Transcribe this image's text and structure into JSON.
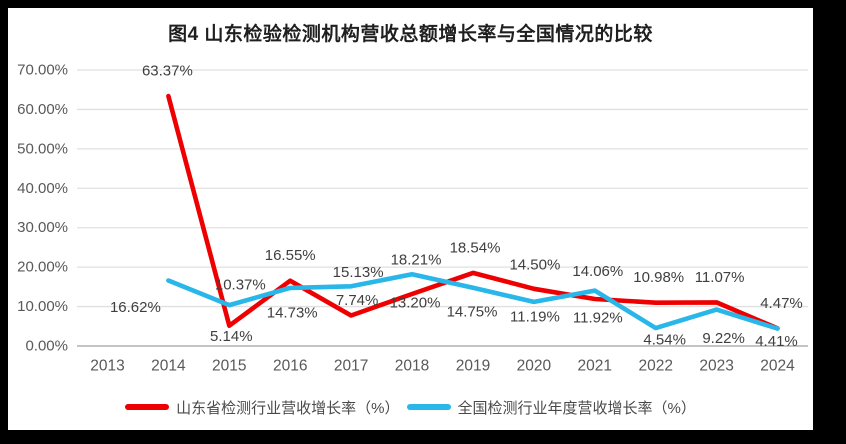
{
  "panel": {
    "frame_background": "#000000",
    "background": "#ffffff"
  },
  "chart_data": {
    "type": "line",
    "title": "图4  山东检验检测机构营收总额增长率与全国情况的比较",
    "categories": [
      "2013",
      "2014",
      "2015",
      "2016",
      "2017",
      "2018",
      "2019",
      "2020",
      "2021",
      "2022",
      "2023",
      "2024"
    ],
    "ylim": [
      0,
      70
    ],
    "y_ticks": [
      "0.00%",
      "10.00%",
      "20.00%",
      "30.00%",
      "40.00%",
      "50.00%",
      "60.00%",
      "70.00%"
    ],
    "grid": true,
    "legend_position": "bottom",
    "series": [
      {
        "id": "shandong",
        "name": "山东省检测行业营收增长率（%）",
        "color": "#ee0000",
        "values": [
          null,
          63.37,
          5.14,
          16.55,
          7.74,
          13.2,
          18.54,
          14.5,
          11.92,
          10.98,
          11.07,
          4.47
        ],
        "labels": [
          null,
          "63.37%",
          "5.14%",
          "16.55%",
          "7.74%",
          "13.20%",
          "18.54%",
          "14.50%",
          "11.92%",
          "10.98%",
          "11.07%",
          "4.47%"
        ]
      },
      {
        "id": "national",
        "name": "全国检测行业年度营收增长率（%）",
        "color": "#29b6e8",
        "values": [
          null,
          16.62,
          10.37,
          14.73,
          15.13,
          18.21,
          14.75,
          11.19,
          14.06,
          4.54,
          9.22,
          4.41
        ],
        "labels": [
          null,
          "16.62%",
          "10.37%",
          "14.73%",
          "15.13%",
          "18.21%",
          "14.75%",
          "11.19%",
          "14.06%",
          "4.54%",
          "9.22%",
          "4.41%"
        ]
      }
    ],
    "label_offsets": {
      "shandong": [
        null,
        [
          -1,
          -25
        ],
        [
          2,
          11
        ],
        [
          0,
          -25
        ],
        [
          6,
          -15
        ],
        [
          3,
          9
        ],
        [
          2,
          -25
        ],
        [
          1,
          -24
        ],
        [
          3,
          19
        ],
        [
          3,
          -25
        ],
        [
          3,
          -25
        ],
        [
          4,
          -25
        ]
      ],
      "national": [
        null,
        [
          -33,
          27
        ],
        [
          11,
          -20
        ],
        [
          2,
          25
        ],
        [
          7,
          -14
        ],
        [
          4,
          -14
        ],
        [
          -1,
          24
        ],
        [
          1,
          15
        ],
        [
          3,
          -19
        ],
        [
          9,
          12
        ],
        [
          7,
          29
        ],
        [
          -1,
          13
        ]
      ]
    },
    "colors": {
      "grid": "#e0e0e0",
      "axis": "#c4c4c4",
      "tick_text": "#595959",
      "data_label_text": "#3f3f3f",
      "title_text": "#1f1f1f",
      "legend_text": "#4a4a4a"
    }
  }
}
